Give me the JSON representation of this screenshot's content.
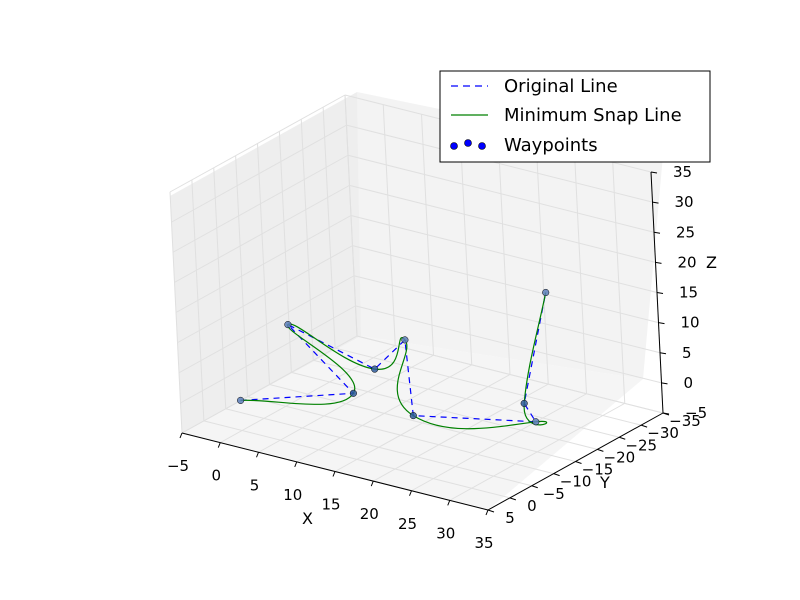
{
  "chart_data": {
    "type": "3d-line-scatter",
    "title": "",
    "xlabel": "X",
    "ylabel": "Y",
    "zlabel": "Z",
    "xlim": [
      -5,
      35
    ],
    "ylim": [
      5,
      -35
    ],
    "zlim": [
      -5,
      35
    ],
    "x_ticks": [
      "−5",
      "0",
      "5",
      "10",
      "15",
      "20",
      "25",
      "30",
      "35"
    ],
    "y_ticks": [
      "5",
      "0",
      "−5",
      "−10",
      "−15",
      "−20",
      "−25",
      "−30",
      "−35"
    ],
    "z_ticks": [
      "−5",
      "0",
      "5",
      "10",
      "15",
      "20",
      "25",
      "30",
      "35"
    ],
    "grid": true,
    "legend_position": "top-right",
    "series": [
      {
        "name": "Original Line",
        "style": "dashed",
        "color": "#0000ff"
      },
      {
        "name": "Minimum Snap Line",
        "style": "solid",
        "color": "#008000"
      },
      {
        "name": "Waypoints",
        "style": "markers",
        "color": "#0000ff"
      }
    ],
    "waypoints": [
      {
        "x": 0,
        "y": 0,
        "z": 0
      },
      {
        "x": 12,
        "y": -5,
        "z": 3
      },
      {
        "x": 2,
        "y": -8,
        "z": 10
      },
      {
        "x": 12,
        "y": -10,
        "z": 5
      },
      {
        "x": 15,
        "y": -12,
        "z": 10
      },
      {
        "x": 18,
        "y": -8,
        "z": 0
      },
      {
        "x": 30,
        "y": -15,
        "z": 0
      },
      {
        "x": 28,
        "y": -16,
        "z": 2
      },
      {
        "x": 28,
        "y": -22,
        "z": 18
      }
    ]
  },
  "icons": {
    "legend_original": "blue-dashed-line-icon",
    "legend_snap": "green-solid-line-icon",
    "legend_waypoints": "blue-scatter-markers-icon"
  }
}
